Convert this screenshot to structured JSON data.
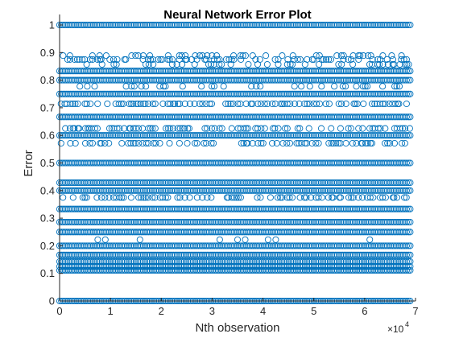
{
  "chart_data": {
    "type": "scatter",
    "title": "Neural Network Error Plot",
    "xlabel": "Nth observation",
    "ylabel": "Error",
    "x_multiplier": "×10",
    "x_multiplier_exponent": "4",
    "xlim": [
      0,
      70000
    ],
    "ylim": [
      0,
      1
    ],
    "x_ticks": [
      0,
      10000,
      20000,
      30000,
      40000,
      50000,
      60000,
      70000
    ],
    "x_tick_labels": [
      "0",
      "1",
      "2",
      "3",
      "4",
      "5",
      "6",
      "7"
    ],
    "y_ticks": [
      0,
      0.1,
      0.2,
      0.3,
      0.4,
      0.5,
      0.6,
      0.7,
      0.8,
      0.9,
      1
    ],
    "y_tick_labels": [
      "0",
      "0.1",
      "0.2",
      "0.3",
      "0.4",
      "0.5",
      "0.6",
      "0.7",
      "0.8",
      "0.9",
      "1"
    ],
    "grid": false,
    "marker": "open-circle",
    "color": "#0072BD",
    "x_extent": [
      0,
      69000
    ],
    "series": [
      {
        "y": 0.0,
        "density": "solid"
      },
      {
        "y": 0.1111,
        "density": "solid"
      },
      {
        "y": 0.125,
        "density": "solid"
      },
      {
        "y": 0.1429,
        "density": "solid"
      },
      {
        "y": 0.1667,
        "density": "solid"
      },
      {
        "y": 0.2,
        "density": "solid"
      },
      {
        "y": 0.2222,
        "density": "sparse",
        "x": [
          7500,
          9000,
          15800,
          31500,
          35000,
          36500,
          41000,
          42500,
          61000
        ]
      },
      {
        "y": 0.25,
        "density": "solid"
      },
      {
        "y": 0.2857,
        "density": "solid"
      },
      {
        "y": 0.3333,
        "density": "solid"
      },
      {
        "y": 0.375,
        "density": "medium"
      },
      {
        "y": 0.4,
        "density": "solid"
      },
      {
        "y": 0.4286,
        "density": "solid"
      },
      {
        "y": 0.5,
        "density": "solid"
      },
      {
        "y": 0.5714,
        "density": "medium"
      },
      {
        "y": 0.6,
        "density": "solid"
      },
      {
        "y": 0.625,
        "density": "medium"
      },
      {
        "y": 0.6667,
        "density": "solid"
      },
      {
        "y": 0.7143,
        "density": "medium"
      },
      {
        "y": 0.75,
        "density": "solid"
      },
      {
        "y": 0.7778,
        "density": "light"
      },
      {
        "y": 0.8,
        "density": "solid"
      },
      {
        "y": 0.8333,
        "density": "solid"
      },
      {
        "y": 0.8571,
        "density": "light"
      },
      {
        "y": 0.875,
        "density": "medium"
      },
      {
        "y": 0.8889,
        "density": "light"
      },
      {
        "y": 1.0,
        "density": "solid"
      }
    ]
  }
}
